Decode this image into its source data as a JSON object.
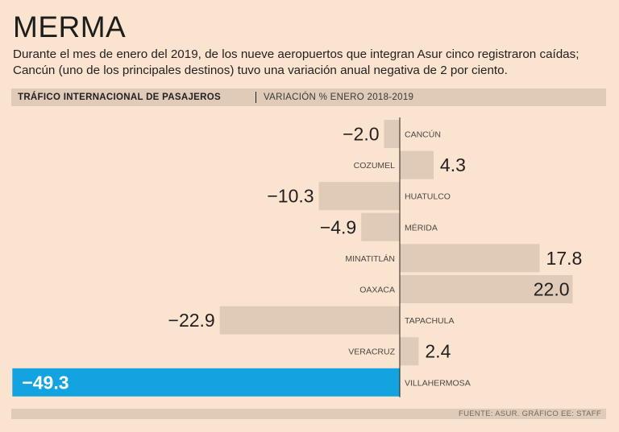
{
  "title": "MERMA",
  "subtitle": "Durante el mes de enero del 2019, de los nueve aeropuertos que integran Asur cinco registraron caídas; Cancún (uno de los principales destinos) tuvo una variación anual negativa de 2 por ciento.",
  "header": {
    "title": "TRÁFICO INTERNACIONAL DE PASAJEROS",
    "subtitle": "VARIACIÓN % ENERO 2018-2019"
  },
  "source": "FUENTE: ASUR. GRÁFICO EE: STAFF",
  "chart_data": {
    "type": "bar",
    "orientation": "horizontal",
    "categories": [
      "CANCÚN",
      "COZUMEL",
      "HUATULCO",
      "MÉRIDA",
      "MINATITLÁN",
      "OAXACA",
      "TAPACHULA",
      "VERACRUZ",
      "VILLAHERMOSA"
    ],
    "values": [
      -2.0,
      4.3,
      -10.3,
      -4.9,
      17.8,
      22.0,
      -22.9,
      2.4,
      -49.3
    ],
    "value_labels": [
      "-2.0",
      "4.3",
      "-10.3",
      "-4.9",
      "17.8",
      "22.0",
      "-22.9",
      "2.4",
      "-49.3"
    ],
    "highlight": "VILLAHERMOSA",
    "colors": {
      "bar": "#dfcbb7",
      "highlight": "#12a3e0",
      "axis": "#231f20"
    },
    "xlim": [
      -49.3,
      22.0
    ],
    "xlabel": "",
    "ylabel": ""
  }
}
